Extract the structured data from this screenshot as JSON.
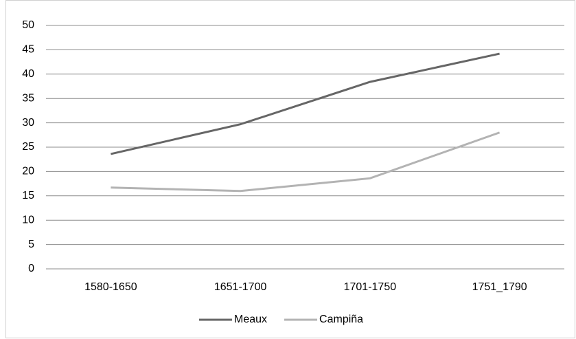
{
  "chart_data": {
    "type": "line",
    "categories": [
      "1580-1650",
      "1651-1700",
      "1701-1750",
      "1751_1790"
    ],
    "series": [
      {
        "name": "Meaux",
        "color": "#666666",
        "values": [
          23.6,
          29.7,
          38.4,
          44.2
        ]
      },
      {
        "name": "Campiña",
        "color": "#b3b3b3",
        "values": [
          16.7,
          16.0,
          18.6,
          28.0
        ]
      }
    ],
    "ylim": [
      0,
      50
    ],
    "yticks": [
      0,
      5,
      10,
      15,
      20,
      25,
      30,
      35,
      40,
      45,
      50
    ],
    "grid": true,
    "legend": "bottom"
  }
}
